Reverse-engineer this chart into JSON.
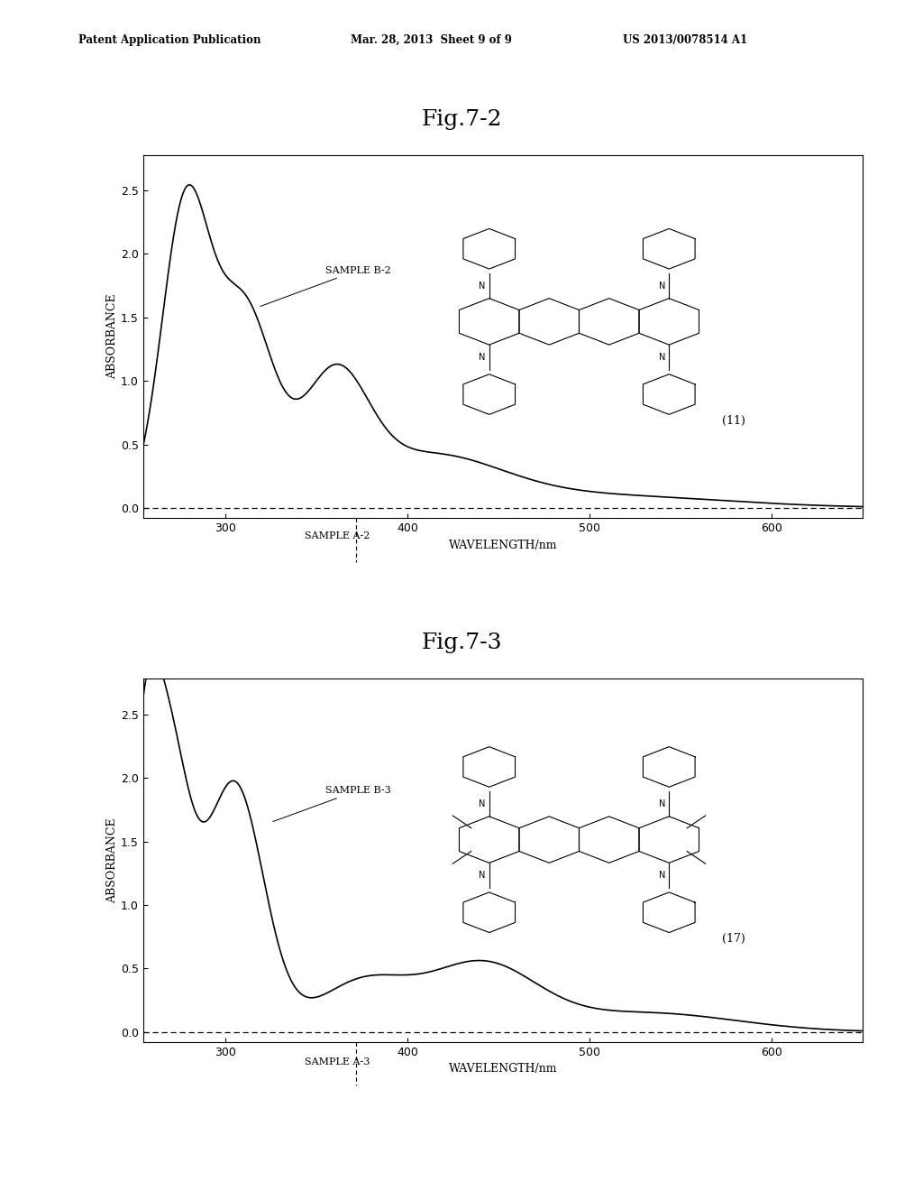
{
  "fig1_title": "Fig.7-2",
  "fig2_title": "Fig.7-3",
  "header_left": "Patent Application Publication",
  "header_mid": "Mar. 28, 2013  Sheet 9 of 9",
  "header_right": "US 2013/0078514 A1",
  "xlabel": "WAVELENGTH/nm",
  "ylabel": "ABSORBANCE",
  "sample_b2": "SAMPLE B-2",
  "sample_a2": "SAMPLE A-2",
  "sample_b3": "SAMPLE B-3",
  "sample_a3": "SAMPLE A-3",
  "compound1": "(11)",
  "compound2": "(17)",
  "xlim": [
    255,
    650
  ],
  "ylim": [
    -0.08,
    2.78
  ],
  "yticks": [
    0,
    0.5,
    1.0,
    1.5,
    2.0,
    2.5
  ],
  "xticks": [
    300,
    400,
    500,
    600
  ],
  "dashed_x": 372,
  "background_color": "#ffffff",
  "line_color": "#000000"
}
